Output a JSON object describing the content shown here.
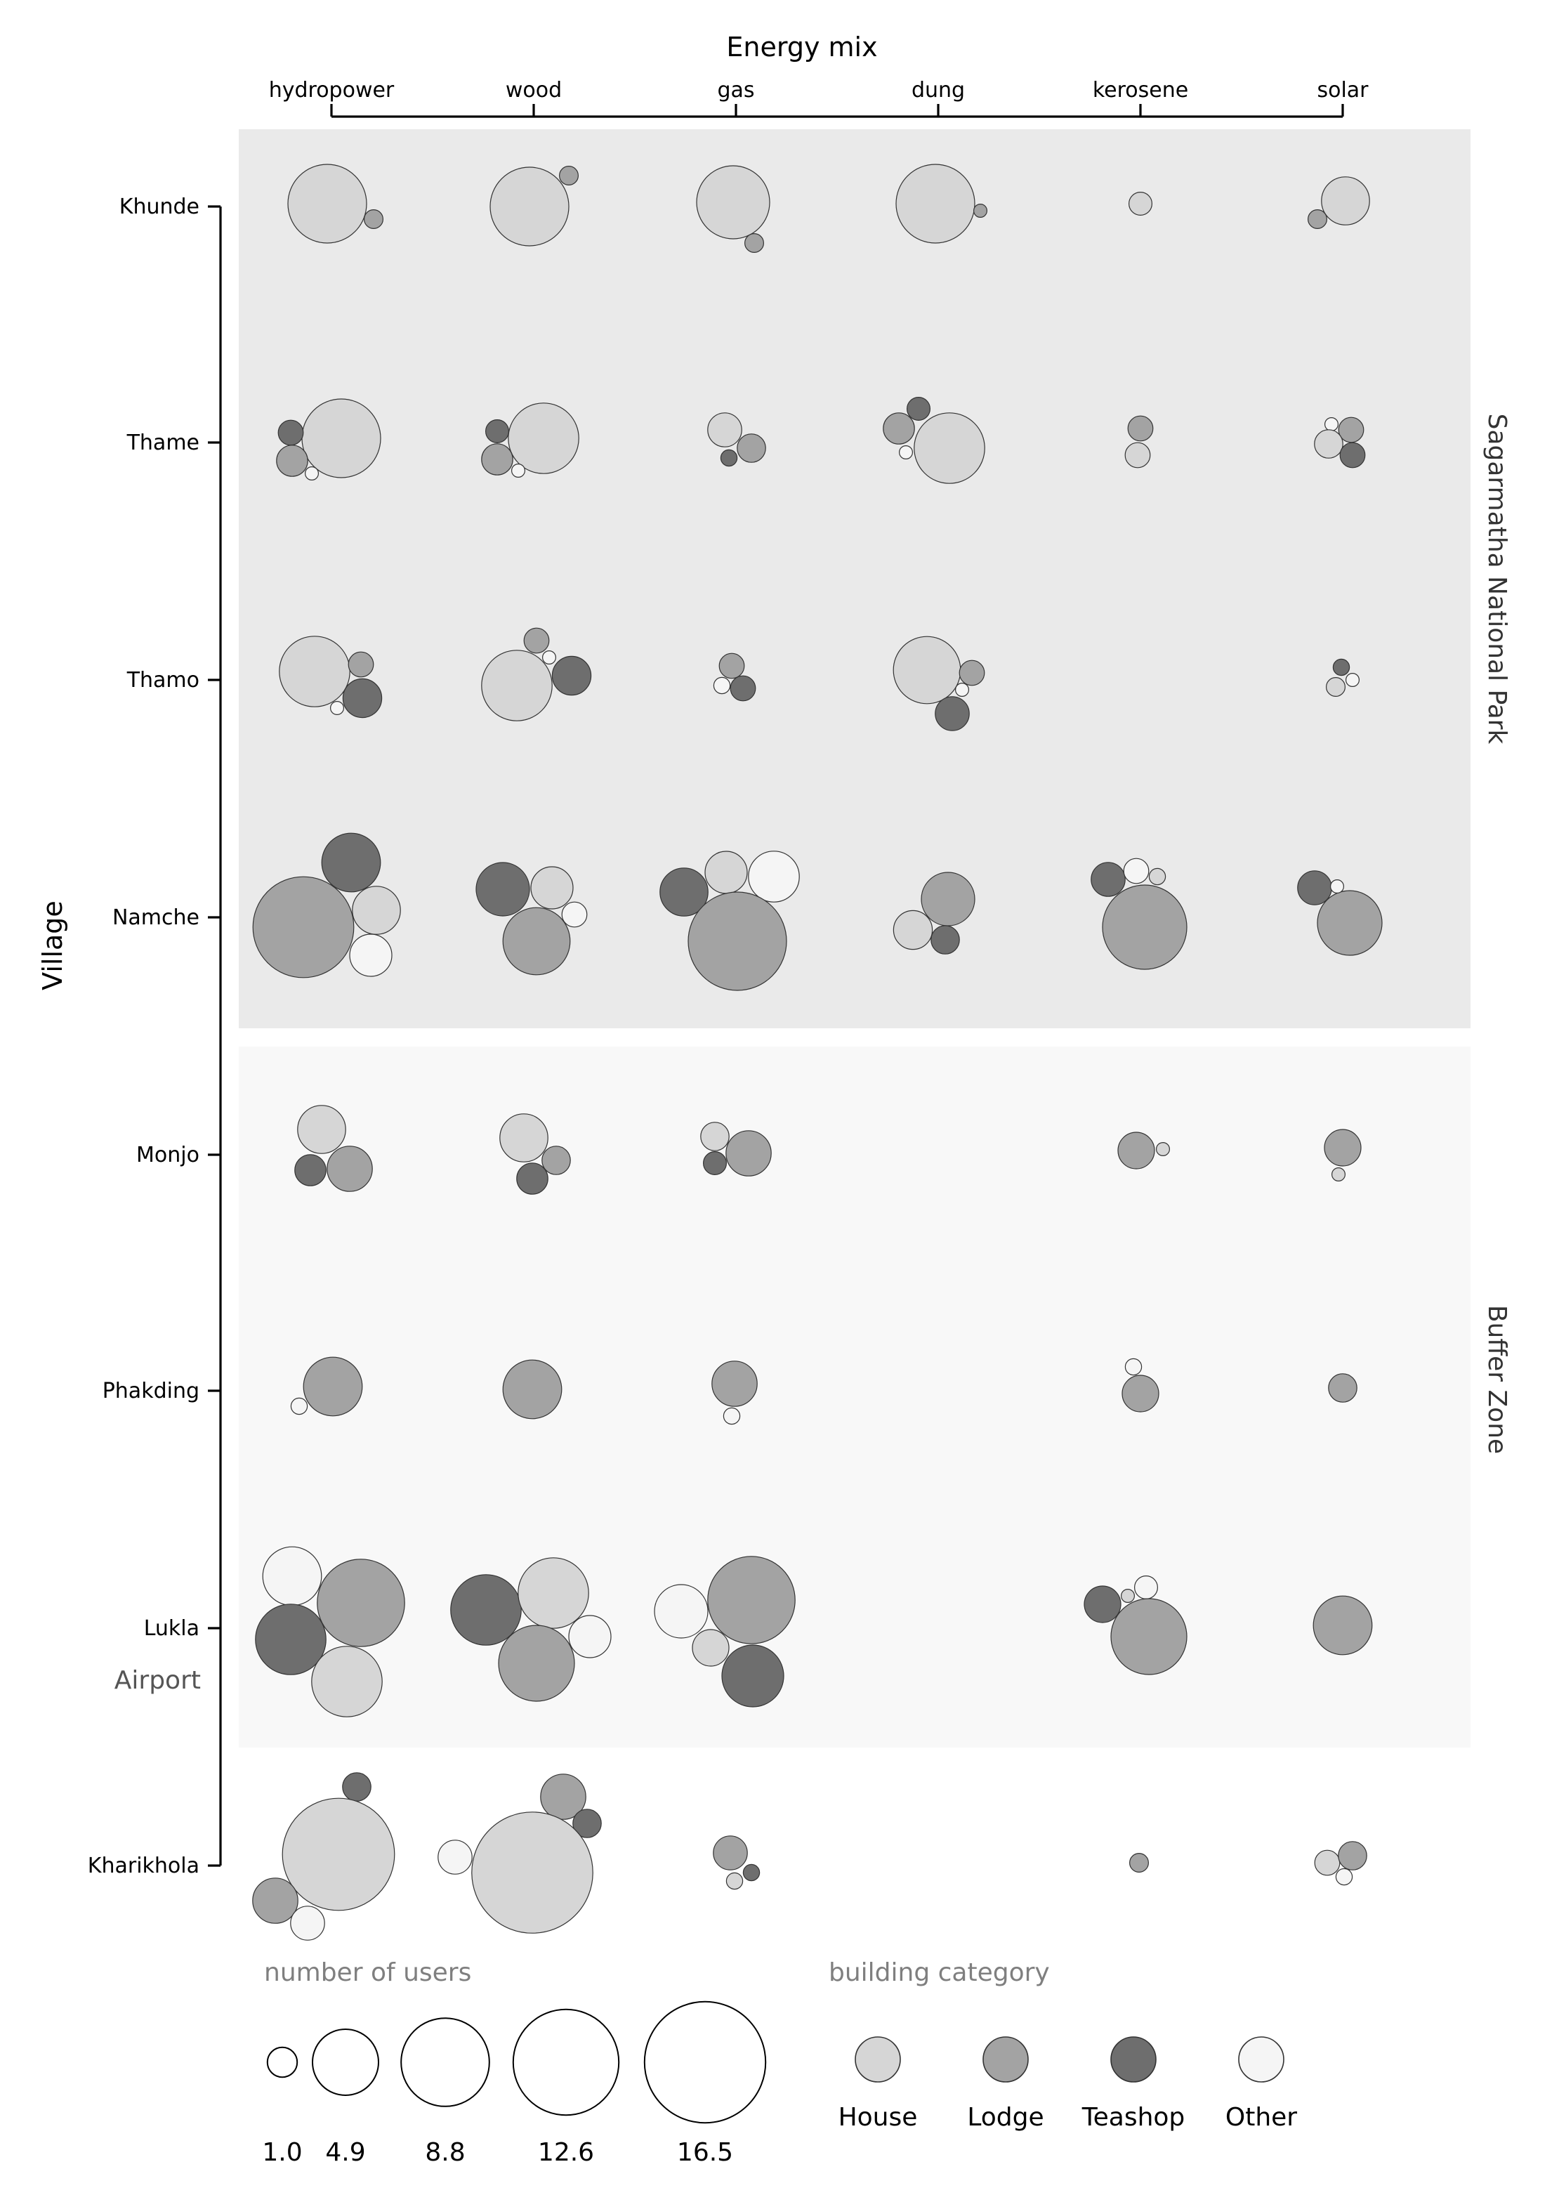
{
  "chart_data": {
    "type": "scatter",
    "subtype": "packed-bubble-grid",
    "title": "Energy mix",
    "xlabel": "Energy mix",
    "ylabel": "Village",
    "x_categories": [
      "hydropower",
      "wood",
      "gas",
      "dung",
      "kerosene",
      "solar"
    ],
    "y_categories": [
      "Khunde",
      "Thame",
      "Thamo",
      "Namche",
      "Monjo",
      "Phakding",
      "Lukla",
      "Kharikhola"
    ],
    "zones": [
      {
        "label": "Sagarmatha National Park",
        "villages": [
          "Khunde",
          "Thame",
          "Thamo",
          "Namche"
        ],
        "color": "#eaeaea"
      },
      {
        "label": "Buffer Zone",
        "villages": [
          "Monjo",
          "Phakding",
          "Lukla"
        ],
        "color": "#f8f8f8"
      }
    ],
    "annotation": "Airport",
    "categories": [
      {
        "label": "House",
        "color": "#d6d6d6"
      },
      {
        "label": "Lodge",
        "color": "#a3a3a3"
      },
      {
        "label": "Teashop",
        "color": "#6e6e6e"
      },
      {
        "label": "Other",
        "color": "#f5f5f5"
      }
    ],
    "size_legend": {
      "title": "number of users",
      "values": [
        "1.0",
        "4.9",
        "8.8",
        "12.6",
        "16.5"
      ]
    },
    "color_legend_title": "building category",
    "bubbles": [
      [
        "Khunde",
        "hydropower",
        "House",
        7.0
      ],
      [
        "Khunde",
        "hydropower",
        "Lodge",
        0.4
      ],
      [
        "Khunde",
        "wood",
        "House",
        7.0
      ],
      [
        "Khunde",
        "wood",
        "Lodge",
        0.4
      ],
      [
        "Khunde",
        "gas",
        "House",
        6.0
      ],
      [
        "Khunde",
        "gas",
        "Lodge",
        0.4
      ],
      [
        "Khunde",
        "dung",
        "House",
        7.0
      ],
      [
        "Khunde",
        "dung",
        "Lodge",
        0.2
      ],
      [
        "Khunde",
        "kerosene",
        "House",
        0.6
      ],
      [
        "Khunde",
        "solar",
        "House",
        2.6
      ],
      [
        "Khunde",
        "solar",
        "Lodge",
        0.4
      ],
      [
        "Thame",
        "hydropower",
        "House",
        7.0
      ],
      [
        "Thame",
        "hydropower",
        "Teashop",
        0.7
      ],
      [
        "Thame",
        "hydropower",
        "Lodge",
        1.1
      ],
      [
        "Thame",
        "hydropower",
        "Other",
        0.2
      ],
      [
        "Thame",
        "wood",
        "House",
        5.6
      ],
      [
        "Thame",
        "wood",
        "Teashop",
        0.6
      ],
      [
        "Thame",
        "wood",
        "Lodge",
        1.1
      ],
      [
        "Thame",
        "wood",
        "Other",
        0.2
      ],
      [
        "Thame",
        "gas",
        "House",
        1.3
      ],
      [
        "Thame",
        "gas",
        "Lodge",
        0.9
      ],
      [
        "Thame",
        "gas",
        "Teashop",
        0.3
      ],
      [
        "Thame",
        "dung",
        "House",
        5.6
      ],
      [
        "Thame",
        "dung",
        "Lodge",
        1.1
      ],
      [
        "Thame",
        "dung",
        "Teashop",
        0.6
      ],
      [
        "Thame",
        "dung",
        "Other",
        0.2
      ],
      [
        "Thame",
        "kerosene",
        "Lodge",
        0.7
      ],
      [
        "Thame",
        "kerosene",
        "House",
        0.7
      ],
      [
        "Thame",
        "solar",
        "Other",
        0.2
      ],
      [
        "Thame",
        "solar",
        "Lodge",
        0.7
      ],
      [
        "Thame",
        "solar",
        "House",
        0.9
      ],
      [
        "Thame",
        "solar",
        "Teashop",
        0.7
      ],
      [
        "Thamo",
        "hydropower",
        "House",
        5.6
      ],
      [
        "Thamo",
        "hydropower",
        "Lodge",
        0.7
      ],
      [
        "Thamo",
        "hydropower",
        "Teashop",
        1.7
      ],
      [
        "Thamo",
        "hydropower",
        "Other",
        0.2
      ],
      [
        "Thamo",
        "wood",
        "House",
        5.6
      ],
      [
        "Thamo",
        "wood",
        "Lodge",
        0.7
      ],
      [
        "Thamo",
        "wood",
        "Other",
        0.2
      ],
      [
        "Thamo",
        "wood",
        "Teashop",
        1.7
      ],
      [
        "Thamo",
        "gas",
        "Lodge",
        0.7
      ],
      [
        "Thamo",
        "gas",
        "Other",
        0.3
      ],
      [
        "Thamo",
        "gas",
        "Teashop",
        0.7
      ],
      [
        "Thamo",
        "dung",
        "House",
        5.1
      ],
      [
        "Thamo",
        "dung",
        "Lodge",
        0.7
      ],
      [
        "Thamo",
        "dung",
        "Other",
        0.2
      ],
      [
        "Thamo",
        "dung",
        "Teashop",
        1.3
      ],
      [
        "Thamo",
        "solar",
        "Teashop",
        0.3
      ],
      [
        "Thamo",
        "solar",
        "Other",
        0.2
      ],
      [
        "Thamo",
        "solar",
        "House",
        0.4
      ],
      [
        "Namche",
        "hydropower",
        "Lodge",
        11.5
      ],
      [
        "Namche",
        "hydropower",
        "Teashop",
        3.9
      ],
      [
        "Namche",
        "hydropower",
        "House",
        2.6
      ],
      [
        "Namche",
        "hydropower",
        "Other",
        2.0
      ],
      [
        "Namche",
        "wood",
        "Teashop",
        3.2
      ],
      [
        "Namche",
        "wood",
        "House",
        2.0
      ],
      [
        "Namche",
        "wood",
        "Lodge",
        5.1
      ],
      [
        "Namche",
        "wood",
        "Other",
        0.7
      ],
      [
        "Namche",
        "gas",
        "Teashop",
        2.6
      ],
      [
        "Namche",
        "gas",
        "House",
        2.0
      ],
      [
        "Namche",
        "gas",
        "Other",
        2.9
      ],
      [
        "Namche",
        "gas",
        "Lodge",
        10.9
      ],
      [
        "Namche",
        "dung",
        "Lodge",
        3.2
      ],
      [
        "Namche",
        "dung",
        "House",
        1.7
      ],
      [
        "Namche",
        "dung",
        "Teashop",
        0.9
      ],
      [
        "Namche",
        "kerosene",
        "Lodge",
        8.0
      ],
      [
        "Namche",
        "kerosene",
        "Teashop",
        1.3
      ],
      [
        "Namche",
        "kerosene",
        "Other",
        0.7
      ],
      [
        "Namche",
        "kerosene",
        "House",
        0.3
      ],
      [
        "Namche",
        "solar",
        "Lodge",
        4.7
      ],
      [
        "Namche",
        "solar",
        "Teashop",
        1.3
      ],
      [
        "Namche",
        "solar",
        "Other",
        0.2
      ],
      [
        "Monjo",
        "hydropower",
        "House",
        2.6
      ],
      [
        "Monjo",
        "hydropower",
        "Teashop",
        1.1
      ],
      [
        "Monjo",
        "hydropower",
        "Lodge",
        2.3
      ],
      [
        "Monjo",
        "wood",
        "House",
        2.6
      ],
      [
        "Monjo",
        "wood",
        "Lodge",
        0.9
      ],
      [
        "Monjo",
        "wood",
        "Teashop",
        1.1
      ],
      [
        "Monjo",
        "gas",
        "House",
        0.9
      ],
      [
        "Monjo",
        "gas",
        "Teashop",
        0.6
      ],
      [
        "Monjo",
        "gas",
        "Lodge",
        2.3
      ],
      [
        "Monjo",
        "kerosene",
        "Lodge",
        1.5
      ],
      [
        "Monjo",
        "kerosene",
        "House",
        0.2
      ],
      [
        "Monjo",
        "solar",
        "Lodge",
        1.5
      ],
      [
        "Monjo",
        "solar",
        "House",
        0.2
      ],
      [
        "Phakding",
        "hydropower",
        "Lodge",
        3.9
      ],
      [
        "Phakding",
        "hydropower",
        "Other",
        0.3
      ],
      [
        "Phakding",
        "wood",
        "Lodge",
        3.9
      ],
      [
        "Phakding",
        "gas",
        "Lodge",
        2.3
      ],
      [
        "Phakding",
        "gas",
        "Other",
        0.3
      ],
      [
        "Phakding",
        "kerosene",
        "Other",
        0.3
      ],
      [
        "Phakding",
        "kerosene",
        "Lodge",
        1.5
      ],
      [
        "Phakding",
        "solar",
        "Lodge",
        0.9
      ],
      [
        "Lukla",
        "hydropower",
        "Other",
        3.9
      ],
      [
        "Lukla",
        "hydropower",
        "Lodge",
        8.6
      ],
      [
        "Lukla",
        "hydropower",
        "Teashop",
        5.6
      ],
      [
        "Lukla",
        "hydropower",
        "House",
        5.6
      ],
      [
        "Lukla",
        "wood",
        "Teashop",
        5.6
      ],
      [
        "Lukla",
        "wood",
        "House",
        5.6
      ],
      [
        "Lukla",
        "wood",
        "Lodge",
        6.5
      ],
      [
        "Lukla",
        "wood",
        "Other",
        2.0
      ],
      [
        "Lukla",
        "gas",
        "Other",
        3.2
      ],
      [
        "Lukla",
        "gas",
        "Lodge",
        8.6
      ],
      [
        "Lukla",
        "gas",
        "House",
        1.5
      ],
      [
        "Lukla",
        "gas",
        "Teashop",
        4.3
      ],
      [
        "Lukla",
        "kerosene",
        "Teashop",
        1.5
      ],
      [
        "Lukla",
        "kerosene",
        "House",
        0.2
      ],
      [
        "Lukla",
        "kerosene",
        "Other",
        0.6
      ],
      [
        "Lukla",
        "kerosene",
        "Lodge",
        6.5
      ],
      [
        "Lukla",
        "solar",
        "Lodge",
        3.9
      ],
      [
        "Kharikhola",
        "hydropower",
        "Teashop",
        0.9
      ],
      [
        "Kharikhola",
        "hydropower",
        "House",
        14.2
      ],
      [
        "Kharikhola",
        "hydropower",
        "Lodge",
        2.3
      ],
      [
        "Kharikhola",
        "hydropower",
        "Other",
        1.3
      ],
      [
        "Kharikhola",
        "wood",
        "Lodge",
        2.3
      ],
      [
        "Kharikhola",
        "wood",
        "Teashop",
        0.9
      ],
      [
        "Kharikhola",
        "wood",
        "Other",
        1.3
      ],
      [
        "Kharikhola",
        "wood",
        "House",
        16.5
      ],
      [
        "Kharikhola",
        "gas",
        "Lodge",
        1.3
      ],
      [
        "Kharikhola",
        "gas",
        "Teashop",
        0.3
      ],
      [
        "Kharikhola",
        "gas",
        "House",
        0.3
      ],
      [
        "Kharikhola",
        "kerosene",
        "Lodge",
        0.4
      ],
      [
        "Kharikhola",
        "solar",
        "House",
        0.7
      ],
      [
        "Kharikhola",
        "solar",
        "Lodge",
        0.9
      ],
      [
        "Kharikhola",
        "solar",
        "Other",
        0.3
      ]
    ]
  }
}
